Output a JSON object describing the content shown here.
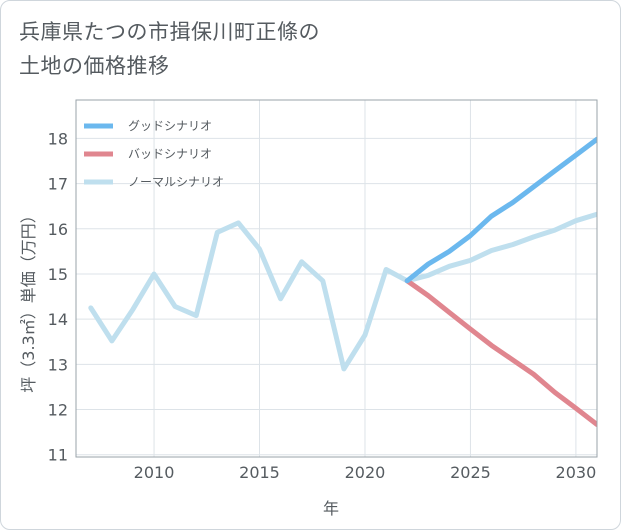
{
  "chart_data": {
    "type": "line",
    "title_lines": [
      "兵庫県たつの市揖保川町正條の",
      "土地の価格推移"
    ],
    "xlabel": "年",
    "ylabel": "坪（3.3㎡）単価（万円）",
    "xlim": [
      2006.3,
      2031
    ],
    "ylim": [
      10.95,
      18.85
    ],
    "x_ticks": [
      2010,
      2015,
      2020,
      2025,
      2030
    ],
    "y_ticks": [
      11,
      12,
      13,
      14,
      15,
      16,
      17,
      18
    ],
    "grid": true,
    "legend_position": "top-left",
    "series": [
      {
        "name": "グッドシナリオ",
        "color": "#6bb8ee",
        "x": [
          2022,
          2023,
          2024,
          2025,
          2026,
          2027,
          2028,
          2029,
          2030,
          2031
        ],
        "values": [
          14.85,
          15.22,
          15.5,
          15.85,
          16.28,
          16.58,
          16.93,
          17.28,
          17.63,
          17.98
        ]
      },
      {
        "name": "バッドシナリオ",
        "color": "#e0868f",
        "x": [
          2022,
          2023,
          2024,
          2025,
          2026,
          2027,
          2028,
          2029,
          2030,
          2031
        ],
        "values": [
          14.85,
          14.52,
          14.15,
          13.78,
          13.42,
          13.1,
          12.78,
          12.38,
          12.03,
          11.67
        ]
      },
      {
        "name": "ノーマルシナリオ",
        "color": "#bfdfee",
        "x": [
          2007,
          2008,
          2009,
          2010,
          2011,
          2012,
          2013,
          2014,
          2015,
          2016,
          2017,
          2018,
          2019,
          2020,
          2021,
          2022,
          2023,
          2024,
          2025,
          2026,
          2027,
          2028,
          2029,
          2030,
          2031
        ],
        "values": [
          14.25,
          13.52,
          14.22,
          15.0,
          14.28,
          14.08,
          15.92,
          16.13,
          15.55,
          14.45,
          15.27,
          14.85,
          12.9,
          13.65,
          15.1,
          14.85,
          14.97,
          15.17,
          15.3,
          15.52,
          15.65,
          15.82,
          15.97,
          16.18,
          16.32
        ]
      }
    ]
  }
}
